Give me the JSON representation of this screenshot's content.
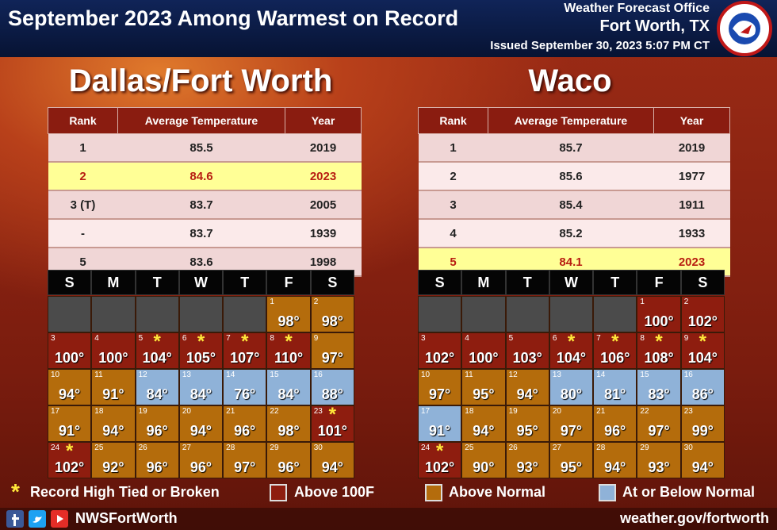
{
  "header": {
    "title": "September 2023 Among Warmest on Record",
    "office": "Weather Forecast Office",
    "location": "Fort Worth, TX",
    "issued": "Issued September 30, 2023 5:07 PM CT"
  },
  "legend": {
    "record": {
      "symbol": "*",
      "label": "Record High Tied or Broken"
    },
    "items": [
      {
        "label": "Above 100F",
        "color": "#8e1d0f"
      },
      {
        "label": "Above Normal",
        "color": "#b46c0c"
      },
      {
        "label": "At or Below Normal",
        "color": "#8fb2d8"
      }
    ]
  },
  "panels": [
    {
      "name": "Dallas/Fort Worth",
      "table": {
        "columns": [
          "Rank",
          "Average Temperature",
          "Year"
        ],
        "rows": [
          {
            "cells": [
              1,
              85.5,
              2019
            ],
            "highlight": false
          },
          {
            "cells": [
              2,
              84.6,
              2023
            ],
            "highlight": true
          },
          {
            "cells": [
              "3 (T)",
              83.7,
              2005
            ],
            "highlight": false
          },
          {
            "cells": [
              "-",
              83.7,
              1939
            ],
            "highlight": false
          },
          {
            "cells": [
              5,
              83.6,
              1998
            ],
            "highlight": false
          }
        ]
      },
      "calendar": {
        "weekdays": [
          "S",
          "M",
          "T",
          "W",
          "T",
          "F",
          "S"
        ],
        "weeks": [
          [
            null,
            null,
            null,
            null,
            null,
            {
              "day": 1,
              "temp": "98°",
              "class": 1,
              "record": false
            },
            {
              "day": 2,
              "temp": "98°",
              "class": 1,
              "record": false
            }
          ],
          [
            {
              "day": 3,
              "temp": "100°",
              "class": 0,
              "record": false
            },
            {
              "day": 4,
              "temp": "100°",
              "class": 0,
              "record": false
            },
            {
              "day": 5,
              "temp": "104°",
              "class": 0,
              "record": true
            },
            {
              "day": 6,
              "temp": "105°",
              "class": 0,
              "record": true
            },
            {
              "day": 7,
              "temp": "107°",
              "class": 0,
              "record": true
            },
            {
              "day": 8,
              "temp": "110°",
              "class": 0,
              "record": true
            },
            {
              "day": 9,
              "temp": "97°",
              "class": 1,
              "record": false
            }
          ],
          [
            {
              "day": 10,
              "temp": "94°",
              "class": 1,
              "record": false
            },
            {
              "day": 11,
              "temp": "91°",
              "class": 1,
              "record": false
            },
            {
              "day": 12,
              "temp": "84°",
              "class": 2,
              "record": false
            },
            {
              "day": 13,
              "temp": "84°",
              "class": 2,
              "record": false
            },
            {
              "day": 14,
              "temp": "76°",
              "class": 2,
              "record": false
            },
            {
              "day": 15,
              "temp": "84°",
              "class": 2,
              "record": false
            },
            {
              "day": 16,
              "temp": "88°",
              "class": 2,
              "record": false
            }
          ],
          [
            {
              "day": 17,
              "temp": "91°",
              "class": 1,
              "record": false
            },
            {
              "day": 18,
              "temp": "94°",
              "class": 1,
              "record": false
            },
            {
              "day": 19,
              "temp": "96°",
              "class": 1,
              "record": false
            },
            {
              "day": 20,
              "temp": "94°",
              "class": 1,
              "record": false
            },
            {
              "day": 21,
              "temp": "96°",
              "class": 1,
              "record": false
            },
            {
              "day": 22,
              "temp": "98°",
              "class": 1,
              "record": false
            },
            {
              "day": 23,
              "temp": "101°",
              "class": 0,
              "record": true
            }
          ],
          [
            {
              "day": 24,
              "temp": "102°",
              "class": 0,
              "record": true
            },
            {
              "day": 25,
              "temp": "92°",
              "class": 1,
              "record": false
            },
            {
              "day": 26,
              "temp": "96°",
              "class": 1,
              "record": false
            },
            {
              "day": 27,
              "temp": "96°",
              "class": 1,
              "record": false
            },
            {
              "day": 28,
              "temp": "97°",
              "class": 1,
              "record": false
            },
            {
              "day": 29,
              "temp": "96°",
              "class": 1,
              "record": false
            },
            {
              "day": 30,
              "temp": "94°",
              "class": 1,
              "record": false
            }
          ]
        ]
      }
    },
    {
      "name": "Waco",
      "table": {
        "columns": [
          "Rank",
          "Average Temperature",
          "Year"
        ],
        "rows": [
          {
            "cells": [
              1,
              85.7,
              2019
            ],
            "highlight": false
          },
          {
            "cells": [
              2,
              85.6,
              1977
            ],
            "highlight": false
          },
          {
            "cells": [
              3,
              85.4,
              1911
            ],
            "highlight": false
          },
          {
            "cells": [
              4,
              85.2,
              1933
            ],
            "highlight": false
          },
          {
            "cells": [
              5,
              84.1,
              2023
            ],
            "highlight": true
          }
        ]
      },
      "calendar": {
        "weekdays": [
          "S",
          "M",
          "T",
          "W",
          "T",
          "F",
          "S"
        ],
        "weeks": [
          [
            null,
            null,
            null,
            null,
            null,
            {
              "day": 1,
              "temp": "100°",
              "class": 0,
              "record": false
            },
            {
              "day": 2,
              "temp": "102°",
              "class": 0,
              "record": false
            }
          ],
          [
            {
              "day": 3,
              "temp": "102°",
              "class": 0,
              "record": false
            },
            {
              "day": 4,
              "temp": "100°",
              "class": 0,
              "record": false
            },
            {
              "day": 5,
              "temp": "103°",
              "class": 0,
              "record": false
            },
            {
              "day": 6,
              "temp": "104°",
              "class": 0,
              "record": true
            },
            {
              "day": 7,
              "temp": "106°",
              "class": 0,
              "record": true
            },
            {
              "day": 8,
              "temp": "108°",
              "class": 0,
              "record": true
            },
            {
              "day": 9,
              "temp": "104°",
              "class": 0,
              "record": true
            }
          ],
          [
            {
              "day": 10,
              "temp": "97°",
              "class": 1,
              "record": false
            },
            {
              "day": 11,
              "temp": "95°",
              "class": 1,
              "record": false
            },
            {
              "day": 12,
              "temp": "94°",
              "class": 1,
              "record": false
            },
            {
              "day": 13,
              "temp": "80°",
              "class": 2,
              "record": false
            },
            {
              "day": 14,
              "temp": "81°",
              "class": 2,
              "record": false
            },
            {
              "day": 15,
              "temp": "83°",
              "class": 2,
              "record": false
            },
            {
              "day": 16,
              "temp": "86°",
              "class": 2,
              "record": false
            }
          ],
          [
            {
              "day": 17,
              "temp": "91°",
              "class": 2,
              "record": false
            },
            {
              "day": 18,
              "temp": "94°",
              "class": 1,
              "record": false
            },
            {
              "day": 19,
              "temp": "95°",
              "class": 1,
              "record": false
            },
            {
              "day": 20,
              "temp": "97°",
              "class": 1,
              "record": false
            },
            {
              "day": 21,
              "temp": "96°",
              "class": 1,
              "record": false
            },
            {
              "day": 22,
              "temp": "97°",
              "class": 1,
              "record": false
            },
            {
              "day": 23,
              "temp": "99°",
              "class": 1,
              "record": false
            }
          ],
          [
            {
              "day": 24,
              "temp": "102°",
              "class": 0,
              "record": true
            },
            {
              "day": 25,
              "temp": "90°",
              "class": 1,
              "record": false
            },
            {
              "day": 26,
              "temp": "93°",
              "class": 1,
              "record": false
            },
            {
              "day": 27,
              "temp": "95°",
              "class": 1,
              "record": false
            },
            {
              "day": 28,
              "temp": "94°",
              "class": 1,
              "record": false
            },
            {
              "day": 29,
              "temp": "93°",
              "class": 1,
              "record": false
            },
            {
              "day": 30,
              "temp": "94°",
              "class": 1,
              "record": false
            }
          ]
        ]
      }
    }
  ],
  "footer": {
    "handle": "NWSFortWorth",
    "url": "weather.gov/fortworth"
  }
}
